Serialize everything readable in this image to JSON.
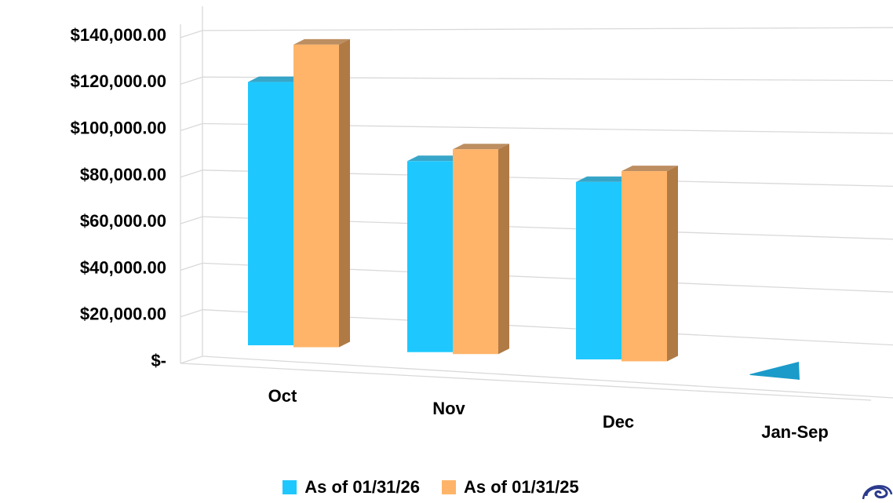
{
  "chart_data": {
    "type": "bar",
    "style": "3d-clustered-column",
    "categories": [
      "Oct",
      "Nov",
      "Dec",
      "Jan-Sep"
    ],
    "series": [
      {
        "name": "As of 01/31/26",
        "color": "#1EC8FF",
        "values": [
          120000,
          85000,
          77000,
          0
        ]
      },
      {
        "name": "As of 01/31/25",
        "color": "#FFB469",
        "values": [
          137000,
          90500,
          82000,
          null
        ]
      }
    ],
    "y_ticks": [
      "$-",
      "$20,000.00",
      "$40,000.00",
      "$60,000.00",
      "$80,000.00",
      "$100,000.00",
      "$120,000.00",
      "$140,000.00"
    ],
    "ylim": [
      0,
      140000
    ],
    "grid": true,
    "legend_position": "bottom"
  },
  "colors": {
    "series1_side": "#1596C0",
    "series2_side": "#B07A45",
    "grid": "#D9D9D9"
  }
}
